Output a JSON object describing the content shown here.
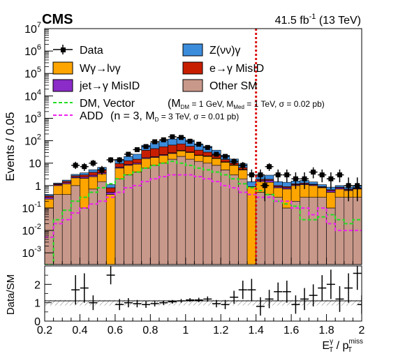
{
  "chart_data": {
    "type": "stacked-bar-with-ratio",
    "experiment": "CMS",
    "lumi_pre": "41.5 fb",
    "lumi_exp": "-1",
    "lumi_post": " (13 TeV)",
    "ylabel": "Events / 0.05",
    "ratio_ylabel": "Data/SM",
    "xlim": [
      0.2,
      2.0
    ],
    "ylim_log": [
      0.0003,
      10000000
    ],
    "ratio_ylim": [
      0,
      3
    ],
    "x_ticks": [
      "0.2",
      "0.4",
      "0.6",
      "0.8",
      "1",
      "1.2",
      "1.4",
      "1.6",
      "1.8",
      "2"
    ],
    "y_ticks": [
      {
        "base": "10",
        "exp": "-3"
      },
      {
        "base": "10",
        "exp": "-2"
      },
      {
        "base": "10",
        "exp": "-1"
      },
      {
        "base": "1",
        "exp": ""
      },
      {
        "base": "10",
        "exp": ""
      },
      {
        "base": "10",
        "exp": "2"
      },
      {
        "base": "10",
        "exp": "3"
      },
      {
        "base": "10",
        "exp": "4"
      },
      {
        "base": "10",
        "exp": "5"
      },
      {
        "base": "10",
        "exp": "6"
      },
      {
        "base": "10",
        "exp": "7"
      }
    ],
    "ratio_ticks": [
      "0",
      "1",
      "2"
    ],
    "cut_line_x": 1.4,
    "colors": {
      "other_sm": "#c8988a",
      "wgamma": "#ffa500",
      "jet_misid": "#8b2bc8",
      "e_misid": "#c81e00",
      "zvv": "#3c8cdc",
      "dm": "#22dd22",
      "add": "#ee22ee",
      "cut": "#dd1111"
    },
    "legend": {
      "data": "Data",
      "zvv": "Z(νν)γ",
      "wgamma": "Wγ→lνγ",
      "e_misid": "e→γ MisID",
      "jet_misid": "jet→γ MisID",
      "other_sm": "Other SM",
      "dm_label": "DM, Vector",
      "dm_detail": "(M",
      "dm_sub1": "DM",
      "dm_mid1": " = 1 GeV, M",
      "dm_sub2": "Med",
      "dm_mid2": " = 1 TeV, σ = 0.02 pb)",
      "add_label": "ADD",
      "add_detail": "(n = 3, M",
      "add_sub": "D",
      "add_mid": " = 3 TeV, σ = 0.01 pb)"
    },
    "bins_start": 0.2,
    "bin_width": 0.05,
    "series": [
      {
        "name": "Other SM",
        "values": [
          0.1,
          0.4,
          0.4,
          1.0,
          0.1,
          0.7,
          1.5,
          0.0002,
          2,
          3,
          4,
          6,
          8,
          10,
          15,
          20,
          15,
          12,
          10,
          8,
          5,
          3,
          2,
          0.0002,
          0.5,
          0.4,
          0.3,
          0.1,
          0.2,
          0.3,
          0.3,
          0.3,
          0.1,
          0.3,
          0.3,
          0.3
        ]
      },
      {
        "name": "Wγ→lνγ",
        "values": [
          0.15,
          0.6,
          0.8,
          1.2,
          2.0,
          1.8,
          1.8,
          0.4,
          4,
          5,
          5,
          10,
          10,
          12,
          12,
          15,
          15,
          10,
          10,
          8,
          6,
          5,
          3,
          0.9,
          1.0,
          1.0,
          0.5,
          0.6,
          0.8,
          0.8,
          0.7,
          0.5,
          0.4,
          0.4,
          0.3,
          0.4
        ]
      },
      {
        "name": "jet→γ MisID",
        "values": [
          0.05,
          0.1,
          0.15,
          0.25,
          0.3,
          0.4,
          0.4,
          0.1,
          0.6,
          0.8,
          1.0,
          1.5,
          1.5,
          2,
          2,
          2,
          1.5,
          1,
          1,
          0.8,
          0.5,
          0.3,
          0.3,
          0.0002,
          0.2,
          0.3,
          0.1,
          0.1,
          0.1,
          0.1,
          0.1,
          0.05,
          0.1,
          0.1,
          0.05,
          0.05
        ]
      },
      {
        "name": "e→γ MisID",
        "values": [
          0.05,
          0.1,
          0.2,
          0.3,
          0.6,
          1.0,
          1.3,
          0.3,
          3,
          4,
          5,
          20,
          25,
          30,
          35,
          35,
          25,
          15,
          10,
          6,
          3,
          2,
          1,
          0.0002,
          0.2,
          0.2,
          0.1,
          0.1,
          0.1,
          0.1,
          0.05,
          0.05,
          0.05,
          0.05,
          0.05,
          0.05
        ]
      },
      {
        "name": "Z(νν)γ",
        "values": [
          0.05,
          0.1,
          0.2,
          0.4,
          0.7,
          1.2,
          1.5,
          0.3,
          5,
          7,
          10,
          25,
          35,
          45,
          55,
          60,
          50,
          30,
          25,
          15,
          8,
          5,
          3,
          0.6,
          0.8,
          1.0,
          0.5,
          0.5,
          0.4,
          0.4,
          0.3,
          0.2,
          0.2,
          0.15,
          0.15,
          0.2
        ]
      }
    ],
    "data_points": [
      {
        "x": 0.375,
        "y": 8,
        "ey_lo": 2.5,
        "ey_hi": 3.5
      },
      {
        "x": 0.425,
        "y": 7,
        "ey_lo": 2.5,
        "ey_hi": 3.0
      },
      {
        "x": 0.475,
        "y": 10,
        "ey_lo": 3,
        "ey_hi": 4
      },
      {
        "x": 0.525,
        "y": 5,
        "ey_lo": 2,
        "ey_hi": 2.5
      },
      {
        "x": 0.575,
        "y": 14,
        "ey_lo": 4,
        "ey_hi": 4.5
      },
      {
        "x": 0.625,
        "y": 14,
        "ey_lo": 4,
        "ey_hi": 4.5
      },
      {
        "x": 0.675,
        "y": 25,
        "ey_lo": 5,
        "ey_hi": 6
      },
      {
        "x": 0.725,
        "y": 40,
        "ey_lo": 6,
        "ey_hi": 7
      },
      {
        "x": 0.775,
        "y": 55,
        "ey_lo": 7,
        "ey_hi": 8
      },
      {
        "x": 0.825,
        "y": 90,
        "ey_lo": 9,
        "ey_hi": 10
      },
      {
        "x": 0.875,
        "y": 110,
        "ey_lo": 10,
        "ey_hi": 11
      },
      {
        "x": 0.925,
        "y": 150,
        "ey_lo": 12,
        "ey_hi": 13
      },
      {
        "x": 0.975,
        "y": 140,
        "ey_lo": 12,
        "ey_hi": 13
      },
      {
        "x": 1.025,
        "y": 95,
        "ey_lo": 10,
        "ey_hi": 10
      },
      {
        "x": 1.075,
        "y": 70,
        "ey_lo": 8,
        "ey_hi": 9
      },
      {
        "x": 1.125,
        "y": 50,
        "ey_lo": 7,
        "ey_hi": 8
      },
      {
        "x": 1.175,
        "y": 25,
        "ey_lo": 5,
        "ey_hi": 6
      },
      {
        "x": 1.225,
        "y": 20,
        "ey_lo": 4,
        "ey_hi": 5
      },
      {
        "x": 1.275,
        "y": 12,
        "ey_lo": 3.5,
        "ey_hi": 4
      },
      {
        "x": 1.325,
        "y": 8,
        "ey_lo": 2.8,
        "ey_hi": 3.3
      },
      {
        "x": 1.375,
        "y": 3,
        "ey_lo": 1.6,
        "ey_hi": 2.2
      },
      {
        "x": 1.425,
        "y": 3,
        "ey_lo": 1.6,
        "ey_hi": 2.2
      },
      {
        "x": 1.475,
        "y": 7,
        "ey_lo": 2.5,
        "ey_hi": 3.0
      },
      {
        "x": 1.525,
        "y": 3,
        "ey_lo": 1.6,
        "ey_hi": 2.2
      },
      {
        "x": 1.575,
        "y": 3,
        "ey_lo": 1.6,
        "ey_hi": 2.2
      },
      {
        "x": 1.625,
        "y": 2,
        "ey_lo": 1.3,
        "ey_hi": 1.9
      },
      {
        "x": 1.675,
        "y": 2,
        "ey_lo": 1.3,
        "ey_hi": 1.9
      },
      {
        "x": 1.725,
        "y": 4,
        "ey_lo": 1.9,
        "ey_hi": 2.5
      },
      {
        "x": 1.775,
        "y": 3,
        "ey_lo": 1.6,
        "ey_hi": 2.2
      },
      {
        "x": 1.825,
        "y": 2,
        "ey_lo": 1.3,
        "ey_hi": 1.9
      },
      {
        "x": 1.875,
        "y": 3,
        "ey_lo": 1.6,
        "ey_hi": 2.2
      },
      {
        "x": 1.925,
        "y": 1,
        "ey_lo": 0.8,
        "ey_hi": 1.3
      },
      {
        "x": 1.975,
        "y": 1,
        "ey_lo": 0.8,
        "ey_hi": 1.3
      },
      {
        "x": 1.45,
        "y": 1,
        "ey_lo": 0.8,
        "ey_hi": 1.3
      }
    ],
    "signal_dm": [
      0.0003,
      0.03,
      0.08,
      0.2,
      0.3,
      0.5,
      0.8,
      1.2,
      2,
      3,
      4,
      6,
      8,
      10,
      12,
      10,
      8,
      6,
      5,
      4,
      3,
      2,
      1.2,
      0.8,
      0.6,
      0.4,
      0.2,
      0.15,
      0.12,
      0.03,
      0.03,
      0.04,
      0.05,
      0.03,
      0.02,
      0.03
    ],
    "signal_add": [
      0.005,
      0.02,
      0.03,
      0.06,
      0.1,
      0.15,
      0.2,
      0.3,
      0.5,
      0.8,
      1.0,
      1.5,
      2.0,
      2.5,
      3,
      3,
      3,
      2.5,
      2,
      1.5,
      1.0,
      0.8,
      0.5,
      0.4,
      0.3,
      0.3,
      0.2,
      0.2,
      0.1,
      0.1,
      0.05,
      0.1,
      0.02,
      0.01,
      0.01,
      0.01
    ],
    "ratio_points": [
      {
        "x": 0.375,
        "y": 1.7,
        "e": 0.8
      },
      {
        "x": 0.425,
        "y": 1.8,
        "e": 0.8
      },
      {
        "x": 0.475,
        "y": 1.0,
        "e": 0.4
      },
      {
        "x": 0.575,
        "y": 2.5,
        "e": 0.5
      },
      {
        "x": 0.625,
        "y": 0.9,
        "e": 0.3
      },
      {
        "x": 0.675,
        "y": 1.0,
        "e": 0.25
      },
      {
        "x": 0.725,
        "y": 0.95,
        "e": 0.2
      },
      {
        "x": 0.775,
        "y": 0.9,
        "e": 0.18
      },
      {
        "x": 0.825,
        "y": 0.95,
        "e": 0.15
      },
      {
        "x": 0.875,
        "y": 1.0,
        "e": 0.12
      },
      {
        "x": 0.925,
        "y": 1.05,
        "e": 0.1
      },
      {
        "x": 0.975,
        "y": 1.1,
        "e": 0.1
      },
      {
        "x": 1.025,
        "y": 1.15,
        "e": 0.1
      },
      {
        "x": 1.075,
        "y": 1.15,
        "e": 0.12
      },
      {
        "x": 1.125,
        "y": 1.2,
        "e": 0.14
      },
      {
        "x": 1.175,
        "y": 0.95,
        "e": 0.2
      },
      {
        "x": 1.225,
        "y": 0.9,
        "e": 0.25
      },
      {
        "x": 1.275,
        "y": 1.3,
        "e": 0.35
      },
      {
        "x": 1.325,
        "y": 1.7,
        "e": 0.5
      },
      {
        "x": 1.375,
        "y": 1.7,
        "e": 0.6
      },
      {
        "x": 1.425,
        "y": 0.8,
        "e": 0.5
      },
      {
        "x": 1.475,
        "y": 1.2,
        "e": 0.5
      },
      {
        "x": 1.525,
        "y": 1.6,
        "e": 0.5
      },
      {
        "x": 1.575,
        "y": 1.6,
        "e": 0.6
      },
      {
        "x": 1.625,
        "y": 0.9,
        "e": 0.5
      },
      {
        "x": 1.675,
        "y": 1.2,
        "e": 0.6
      },
      {
        "x": 1.725,
        "y": 1.4,
        "e": 0.6
      },
      {
        "x": 1.775,
        "y": 1.8,
        "e": 0.7
      },
      {
        "x": 1.825,
        "y": 2.0,
        "e": 0.8
      },
      {
        "x": 1.875,
        "y": 1.2,
        "e": 0.7
      },
      {
        "x": 1.925,
        "y": 1.8,
        "e": 0.8
      },
      {
        "x": 1.975,
        "y": 2.6,
        "e": 0.9
      },
      {
        "x": 2.0,
        "y": 0.9,
        "e": 0.5
      }
    ]
  }
}
